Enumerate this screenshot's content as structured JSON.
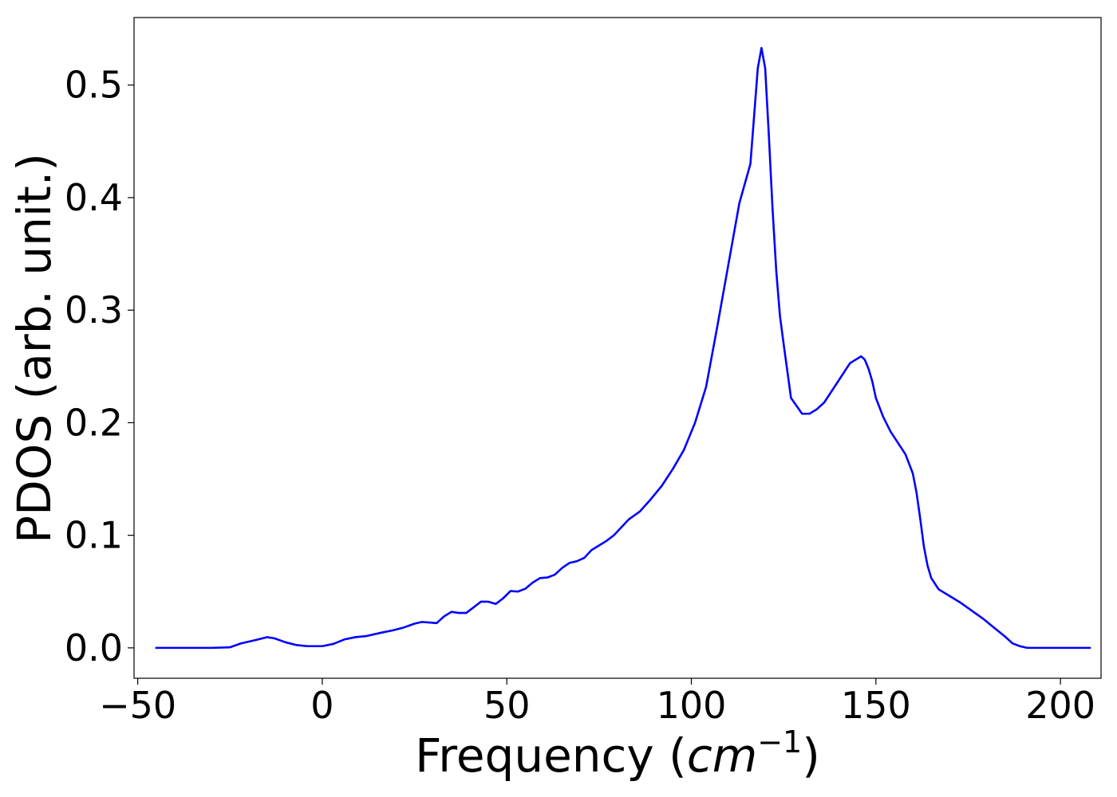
{
  "chart_data": {
    "type": "line",
    "xlabel": "Frequency (",
    "xlabel_unit_base": "cm",
    "xlabel_unit_exp": "−1",
    "xlabel_close": ")",
    "ylabel": "PDOS (arb. unit.)",
    "xlim": [
      -51,
      211
    ],
    "ylim": [
      -0.027,
      0.56
    ],
    "xticks": [
      -50,
      0,
      50,
      100,
      150,
      200
    ],
    "xtick_labels": [
      "−50",
      "0",
      "50",
      "100",
      "150",
      "200"
    ],
    "yticks": [
      0.0,
      0.1,
      0.2,
      0.3,
      0.4,
      0.5
    ],
    "ytick_labels": [
      "0.0",
      "0.1",
      "0.2",
      "0.3",
      "0.4",
      "0.5"
    ],
    "grid": false,
    "legend": "none",
    "series": [
      {
        "color": "#0000ff",
        "x": [
          -45,
          -30,
          -25,
          -22,
          -18,
          -15,
          -13,
          -10,
          -7,
          -4,
          0,
          3,
          6,
          9,
          12,
          16,
          19,
          22,
          25,
          27,
          29,
          31,
          33,
          35,
          37,
          39,
          41,
          43,
          45,
          47,
          49,
          51,
          53,
          55,
          57,
          59,
          61,
          63,
          65,
          67,
          69,
          71,
          73,
          75,
          77,
          79,
          81,
          83,
          86,
          89,
          92,
          95,
          98,
          101,
          104,
          107,
          110,
          113,
          116,
          118,
          119,
          120,
          121,
          122,
          123,
          124,
          125,
          127,
          130,
          132,
          134,
          136,
          138,
          140,
          143,
          146,
          147,
          148,
          149,
          150,
          152,
          154,
          156,
          158,
          160,
          161,
          162,
          163,
          164,
          165,
          166,
          167,
          170,
          173,
          176,
          179,
          182,
          185,
          187,
          189,
          191,
          195,
          200,
          208
        ],
        "y": [
          0.0,
          0.0,
          0.0005,
          0.004,
          0.007,
          0.0095,
          0.0085,
          0.005,
          0.0025,
          0.0015,
          0.0015,
          0.0035,
          0.0075,
          0.0095,
          0.0105,
          0.0135,
          0.0155,
          0.018,
          0.0215,
          0.023,
          0.0225,
          0.022,
          0.028,
          0.032,
          0.031,
          0.031,
          0.036,
          0.041,
          0.041,
          0.039,
          0.044,
          0.0505,
          0.05,
          0.0525,
          0.058,
          0.062,
          0.0625,
          0.065,
          0.071,
          0.0755,
          0.077,
          0.08,
          0.087,
          0.091,
          0.095,
          0.1,
          0.107,
          0.114,
          0.121,
          0.132,
          0.144,
          0.159,
          0.176,
          0.2,
          0.232,
          0.285,
          0.34,
          0.395,
          0.43,
          0.515,
          0.533,
          0.515,
          0.455,
          0.39,
          0.335,
          0.295,
          0.27,
          0.222,
          0.208,
          0.208,
          0.212,
          0.218,
          0.228,
          0.238,
          0.253,
          0.259,
          0.256,
          0.248,
          0.237,
          0.222,
          0.205,
          0.192,
          0.182,
          0.172,
          0.155,
          0.138,
          0.115,
          0.09,
          0.073,
          0.062,
          0.057,
          0.052,
          0.046,
          0.04,
          0.033,
          0.026,
          0.018,
          0.01,
          0.004,
          0.0015,
          0.0,
          0.0,
          0.0,
          0.0
        ]
      }
    ]
  }
}
